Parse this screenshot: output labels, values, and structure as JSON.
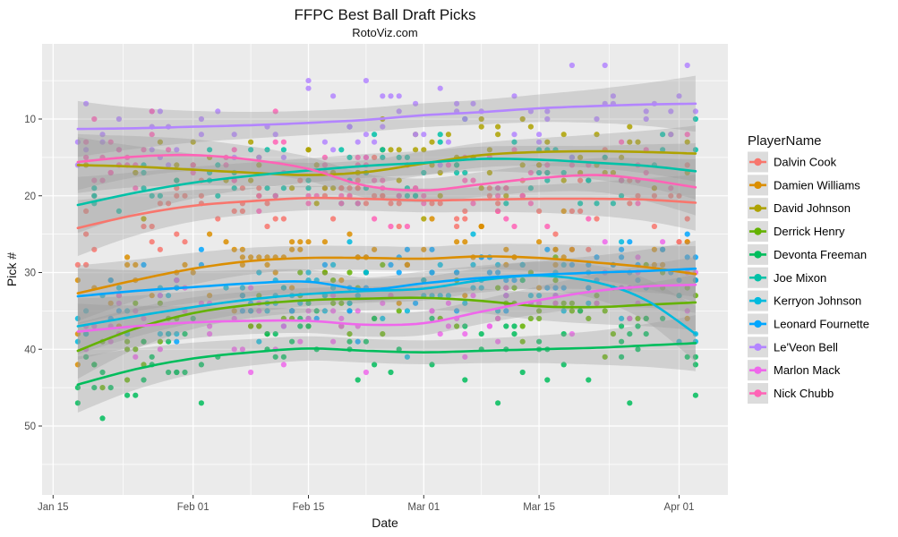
{
  "title": "FFPC Best Ball Draft Picks",
  "subtitle": "RotoViz.com",
  "axes": {
    "x": {
      "label": "Date",
      "tick_labels": [
        "Jan 15",
        "Feb 01",
        "Feb 15",
        "Mar 01",
        "Mar 15",
        "Apr 01"
      ],
      "tick_days": [
        0,
        17,
        31,
        45,
        59,
        76
      ]
    },
    "y": {
      "label": "Pick #",
      "ticks": [
        10,
        20,
        30,
        40,
        50
      ],
      "minor_ticks": [
        5,
        15,
        25,
        35,
        45,
        55
      ],
      "reversed": true,
      "approx_data_range": [
        3,
        56
      ]
    }
  },
  "legend": {
    "title": "PlayerName",
    "items": [
      {
        "label": "Dalvin Cook",
        "color": "#F8766D"
      },
      {
        "label": "Damien Williams",
        "color": "#DB8E00"
      },
      {
        "label": "David Johnson",
        "color": "#AEA200"
      },
      {
        "label": "Derrick Henry",
        "color": "#64B200"
      },
      {
        "label": "Devonta Freeman",
        "color": "#00BD5C"
      },
      {
        "label": "Joe Mixon",
        "color": "#00C1A7"
      },
      {
        "label": "Kerryon Johnson",
        "color": "#00BADE"
      },
      {
        "label": "Leonard Fournette",
        "color": "#00A6FF"
      },
      {
        "label": "Le'Veon Bell",
        "color": "#B385FF"
      },
      {
        "label": "Marlon Mack",
        "color": "#EF67EB"
      },
      {
        "label": "Nick Chubb",
        "color": "#FF63B6"
      }
    ]
  },
  "chart_data": {
    "type": "scatter",
    "x_unit": "days since Jan 15",
    "y_unit": "draft pick number (reversed axis)",
    "smoother": "loess with confidence ribbon",
    "series": [
      {
        "name": "Dalvin Cook",
        "color": "#F8766D",
        "trend": [
          [
            3,
            24.2
          ],
          [
            10,
            22.5
          ],
          [
            17,
            21.3
          ],
          [
            24,
            20.7
          ],
          [
            31,
            20.3
          ],
          [
            38,
            20.4
          ],
          [
            45,
            20.6
          ],
          [
            52,
            20.5
          ],
          [
            59,
            20.4
          ],
          [
            66,
            20.4
          ],
          [
            72,
            20.5
          ],
          [
            78,
            20.9
          ]
        ]
      },
      {
        "name": "Damien Williams",
        "color": "#DB8E00",
        "trend": [
          [
            3,
            32.7
          ],
          [
            10,
            31.0
          ],
          [
            17,
            29.5
          ],
          [
            24,
            28.5
          ],
          [
            31,
            28.1
          ],
          [
            38,
            28.1
          ],
          [
            45,
            28.2
          ],
          [
            52,
            27.9
          ],
          [
            59,
            28.1
          ],
          [
            66,
            28.7
          ],
          [
            72,
            29.3
          ],
          [
            78,
            30.2
          ]
        ]
      },
      {
        "name": "David Johnson",
        "color": "#AEA200",
        "trend": [
          [
            3,
            16.0
          ],
          [
            10,
            16.2
          ],
          [
            17,
            16.6
          ],
          [
            24,
            17.0
          ],
          [
            31,
            17.3
          ],
          [
            38,
            16.9
          ],
          [
            45,
            15.8
          ],
          [
            52,
            14.7
          ],
          [
            59,
            14.3
          ],
          [
            66,
            14.2
          ],
          [
            72,
            14.3
          ],
          [
            78,
            14.5
          ]
        ]
      },
      {
        "name": "Derrick Henry",
        "color": "#64B200",
        "trend": [
          [
            3,
            40.2
          ],
          [
            10,
            37.3
          ],
          [
            17,
            35.3
          ],
          [
            24,
            34.2
          ],
          [
            31,
            33.6
          ],
          [
            38,
            33.4
          ],
          [
            45,
            33.3
          ],
          [
            52,
            33.7
          ],
          [
            59,
            34.4
          ],
          [
            66,
            34.5
          ],
          [
            72,
            34.2
          ],
          [
            78,
            33.9
          ]
        ]
      },
      {
        "name": "Devonta Freeman",
        "color": "#00BD5C",
        "trend": [
          [
            3,
            44.6
          ],
          [
            10,
            42.6
          ],
          [
            17,
            41.2
          ],
          [
            24,
            40.4
          ],
          [
            31,
            39.9
          ],
          [
            38,
            40.2
          ],
          [
            45,
            40.4
          ],
          [
            52,
            40.2
          ],
          [
            59,
            40.0
          ],
          [
            66,
            39.8
          ],
          [
            72,
            39.5
          ],
          [
            78,
            39.2
          ]
        ]
      },
      {
        "name": "Joe Mixon",
        "color": "#00C1A7",
        "trend": [
          [
            3,
            21.2
          ],
          [
            10,
            19.6
          ],
          [
            17,
            18.3
          ],
          [
            24,
            17.4
          ],
          [
            31,
            16.7
          ],
          [
            38,
            16.1
          ],
          [
            45,
            15.7
          ],
          [
            52,
            15.2
          ],
          [
            59,
            15.3
          ],
          [
            66,
            15.7
          ],
          [
            72,
            16.1
          ],
          [
            78,
            16.8
          ]
        ]
      },
      {
        "name": "Kerryon Johnson",
        "color": "#00BADE",
        "trend": [
          [
            3,
            37.0
          ],
          [
            10,
            35.7
          ],
          [
            17,
            34.5
          ],
          [
            24,
            33.5
          ],
          [
            31,
            32.8
          ],
          [
            38,
            32.4
          ],
          [
            45,
            32.1
          ],
          [
            52,
            31.0
          ],
          [
            59,
            30.4
          ],
          [
            66,
            31.3
          ],
          [
            72,
            33.6
          ],
          [
            78,
            38.0
          ]
        ]
      },
      {
        "name": "Leonard Fournette",
        "color": "#00A6FF",
        "trend": [
          [
            3,
            33.1
          ],
          [
            10,
            32.4
          ],
          [
            17,
            31.9
          ],
          [
            24,
            31.4
          ],
          [
            31,
            31.2
          ],
          [
            38,
            32.2
          ],
          [
            45,
            31.4
          ],
          [
            52,
            30.7
          ],
          [
            59,
            30.3
          ],
          [
            66,
            30.0
          ],
          [
            72,
            29.8
          ],
          [
            78,
            29.5
          ]
        ]
      },
      {
        "name": "Le'Veon Bell",
        "color": "#B385FF",
        "trend": [
          [
            3,
            11.3
          ],
          [
            10,
            11.2
          ],
          [
            17,
            11.0
          ],
          [
            24,
            10.8
          ],
          [
            31,
            10.5
          ],
          [
            38,
            10.1
          ],
          [
            45,
            9.5
          ],
          [
            52,
            9.1
          ],
          [
            59,
            8.6
          ],
          [
            66,
            8.3
          ],
          [
            72,
            8.1
          ],
          [
            78,
            8.0
          ]
        ]
      },
      {
        "name": "Marlon Mack",
        "color": "#EF67EB",
        "trend": [
          [
            3,
            37.7
          ],
          [
            10,
            37.0
          ],
          [
            17,
            36.5
          ],
          [
            24,
            36.3
          ],
          [
            31,
            36.3
          ],
          [
            38,
            36.8
          ],
          [
            45,
            36.6
          ],
          [
            52,
            35.1
          ],
          [
            59,
            33.6
          ],
          [
            66,
            32.4
          ],
          [
            72,
            31.8
          ],
          [
            78,
            31.6
          ]
        ]
      },
      {
        "name": "Nick Chubb",
        "color": "#FF63B6",
        "trend": [
          [
            3,
            15.6
          ],
          [
            10,
            14.9
          ],
          [
            17,
            14.7
          ],
          [
            24,
            15.3
          ],
          [
            31,
            16.5
          ],
          [
            38,
            18.7
          ],
          [
            45,
            19.3
          ],
          [
            52,
            18.5
          ],
          [
            59,
            17.7
          ],
          [
            66,
            17.3
          ],
          [
            72,
            17.9
          ],
          [
            78,
            18.9
          ]
        ]
      }
    ],
    "scatter": {
      "day_start": 3,
      "day_end": 78,
      "day_prob": 0.62,
      "sd_mid": 2.4,
      "sd_edge_extra": 0.9,
      "outlier_prob": 0.08,
      "outlier_span": 16,
      "pick_min": 3,
      "pick_max": 57
    }
  },
  "style": {
    "panel_bg": "#EBEBEB",
    "grid": "#FFFFFF",
    "ribbon_fill": "#999999",
    "ribbon_opacity": 0.32,
    "point_opacity": 0.85,
    "tick_label_color": "#4D4D4D",
    "axis_title_color": "#111111",
    "title_color": "#111111",
    "legend_key_bg": "#DCDCDC",
    "tick_mark_color": "#333333"
  }
}
